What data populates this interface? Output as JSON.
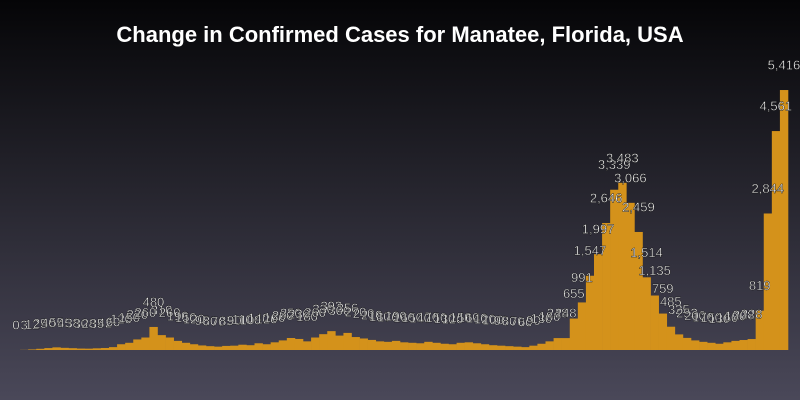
{
  "chart_data": {
    "type": "bar",
    "title": "Change in Confirmed Cases for Manatee, Florida, USA",
    "color": "#d4921b",
    "ylim": [
      0,
      6000
    ],
    "values": [
      0,
      3,
      12,
      25,
      40,
      55,
      45,
      38,
      30,
      28,
      35,
      42,
      60,
      120,
      150,
      220,
      260,
      480,
      310,
      260,
      190,
      150,
      120,
      95,
      80,
      70,
      85,
      90,
      110,
      100,
      140,
      120,
      160,
      200,
      250,
      230,
      180,
      260,
      330,
      393,
      300,
      356,
      270,
      240,
      210,
      180,
      170,
      190,
      160,
      150,
      140,
      170,
      150,
      130,
      120,
      150,
      160,
      140,
      120,
      100,
      90,
      80,
      70,
      60,
      90,
      130,
      180,
      248,
      248,
      655,
      991,
      1547,
      1997,
      2646,
      3339,
      3483,
      3066,
      2459,
      1514,
      1135,
      759,
      485,
      325,
      252,
      200,
      170,
      150,
      130,
      160,
      190,
      208,
      228,
      819,
      2844,
      4561,
      5416
    ],
    "value_labels": [
      "0",
      "3",
      "12",
      "25",
      "40",
      "55",
      "45",
      "38",
      "30",
      "28",
      "35",
      "42",
      "60",
      "120",
      "150",
      "220",
      "260",
      "480",
      "310",
      "260",
      "190",
      "150",
      "120",
      "95",
      "80",
      "70",
      "85",
      "90",
      "110",
      "100",
      "140",
      "120",
      "160",
      "200",
      "250",
      "230",
      "180",
      "260",
      "330",
      "393",
      "300",
      "356",
      "270",
      "240",
      "210",
      "180",
      "170",
      "190",
      "160",
      "150",
      "140",
      "170",
      "150",
      "130",
      "120",
      "150",
      "160",
      "140",
      "120",
      "100",
      "90",
      "80",
      "70",
      "60",
      "90",
      "130",
      "180",
      "248",
      "248",
      "655",
      "991",
      "1,547",
      "1,997",
      "2,646",
      "3,339",
      "3,483",
      "3,066",
      "2,459",
      "1,514",
      "1,135",
      "759",
      "485",
      "325",
      "252",
      "200",
      "170",
      "150",
      "130",
      "160",
      "190",
      "208",
      "228",
      "819",
      "2,844",
      "4,561",
      "5,416"
    ]
  }
}
